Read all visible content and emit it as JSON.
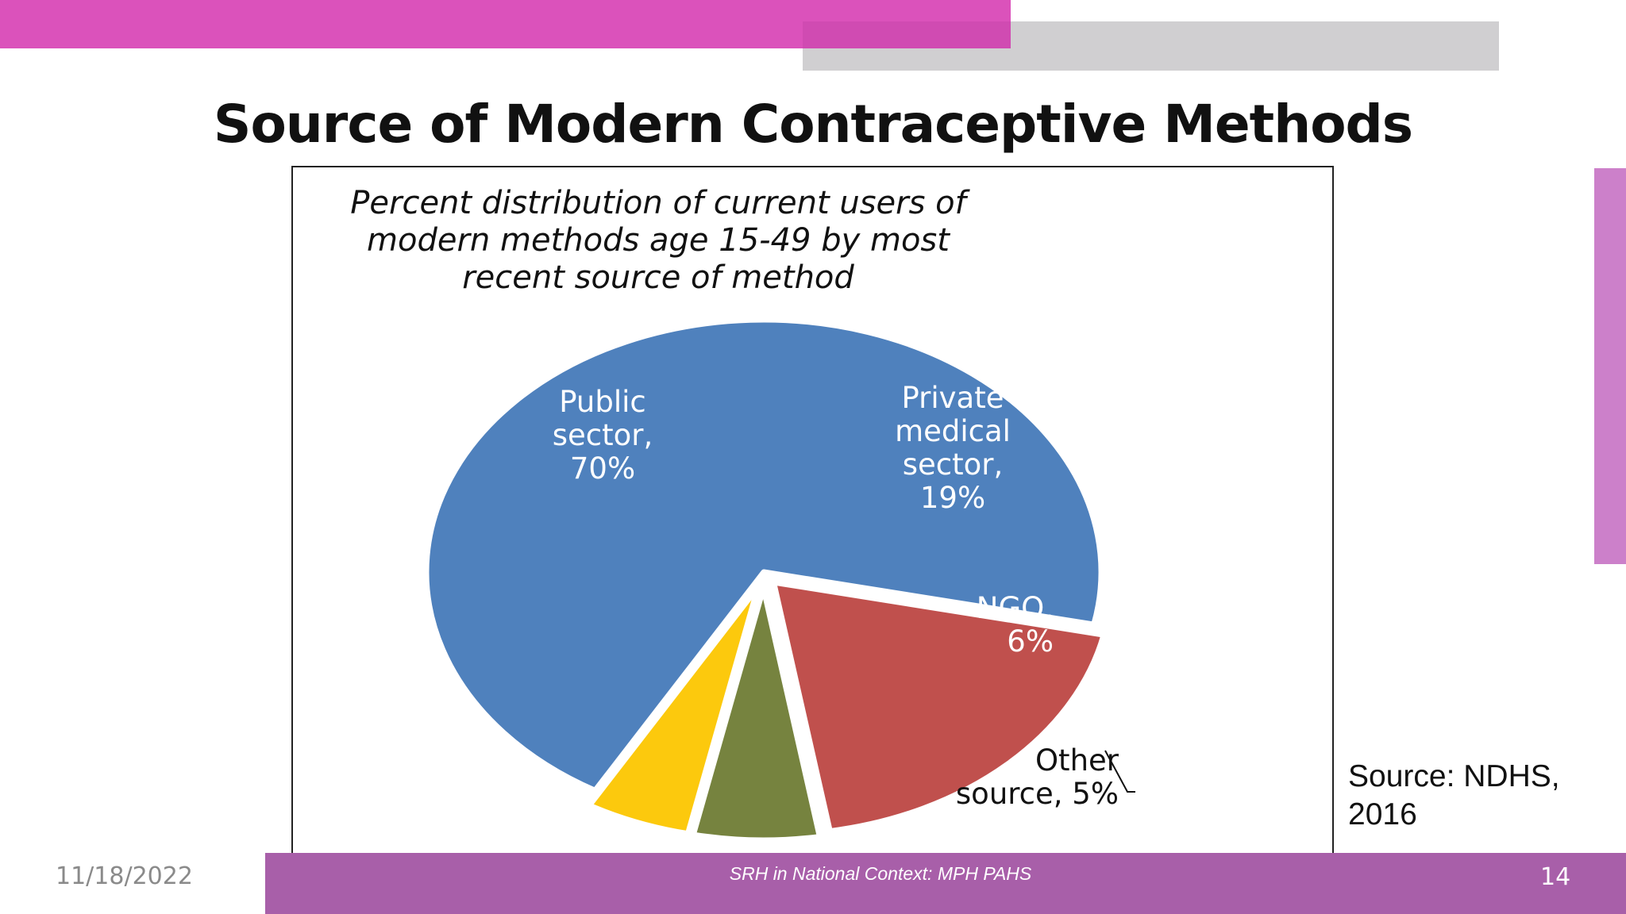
{
  "slide": {
    "title": "Source of Modern Contraceptive Methods",
    "source_note": "Source:  NDHS,\n2016",
    "footer": {
      "date": "11/18/2022",
      "center": "SRH in National Context: MPH PAHS",
      "page": "14"
    }
  },
  "colors": {
    "accent_pink": "#db52bb",
    "accent_gray": "#d0cfd1",
    "accent_overlap": "#d04bb2",
    "side_bar": "#cc80ca",
    "footer_bar": "#a85fa9"
  },
  "chart_data": {
    "type": "pie",
    "title": "Percent distribution of current users of\nmodern methods age 15-49 by most\nrecent source of method",
    "slices": [
      {
        "label": "Public sector, 70%",
        "lines": [
          "Public",
          "sector,",
          "70%"
        ],
        "value": 70,
        "color": "#4f81bd",
        "label_color": "#ffffff"
      },
      {
        "label": "Private medical sector, 19%",
        "lines": [
          "Private",
          "medical",
          "sector,",
          "19%"
        ],
        "value": 19,
        "color": "#c0504d",
        "label_color": "#ffffff"
      },
      {
        "label": "NGO, 6%",
        "lines": [
          "NGO,",
          "6%"
        ],
        "value": 6,
        "color": "#76833f",
        "label_color": "#ffffff"
      },
      {
        "label": "Other source, 5%",
        "lines": [
          "Other",
          "source, 5%"
        ],
        "value": 5,
        "color": "#fcc90d",
        "label_color": "#111111"
      }
    ],
    "legend": "none"
  }
}
